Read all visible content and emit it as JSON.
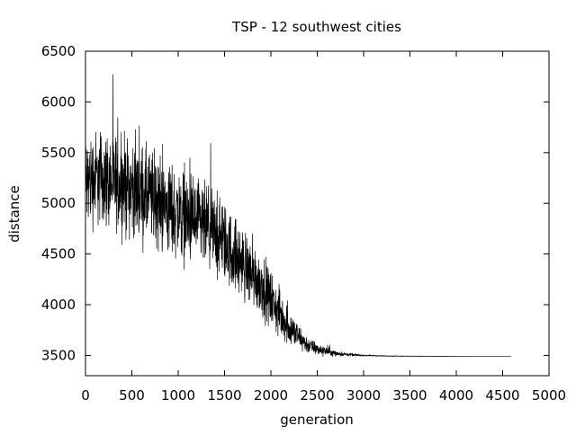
{
  "chart_data": {
    "type": "line",
    "title": "TSP - 12 southwest cities",
    "xlabel": "generation",
    "ylabel": "distance",
    "xlim": [
      0,
      5000
    ],
    "ylim": [
      3300,
      6500
    ],
    "xticks": [
      0,
      500,
      1000,
      1500,
      2000,
      2500,
      3000,
      3500,
      4000,
      4500,
      5000
    ],
    "yticks": [
      3500,
      4000,
      4500,
      5000,
      5500,
      6000,
      6500
    ],
    "xtick_labels": [
      "0",
      "500",
      "1000",
      "1500",
      "2000",
      "2500",
      "3000",
      "3500",
      "4000",
      "4500",
      "5000"
    ],
    "ytick_labels": [
      "3500",
      "4000",
      "4500",
      "5000",
      "5500",
      "6000",
      "6500"
    ],
    "grid": false,
    "legend": "none",
    "line_color": "#000000",
    "series": [
      {
        "x": [
          0,
          100,
          200,
          300,
          400,
          500,
          600,
          700,
          800,
          900,
          1000,
          1100,
          1200,
          1300,
          1400,
          1500,
          1600,
          1700,
          1800,
          1900,
          2000,
          2100,
          2200,
          2300,
          2400,
          2500,
          2600,
          2700,
          2800,
          2900,
          3000,
          3200,
          3400,
          3600,
          3800,
          4000,
          4200,
          4400,
          4590
        ],
        "y": [
          5200,
          5250,
          5250,
          5200,
          5200,
          5150,
          5100,
          5050,
          5000,
          4950,
          4900,
          4850,
          4800,
          4750,
          4700,
          4600,
          4500,
          4400,
          4300,
          4200,
          4050,
          3900,
          3780,
          3680,
          3600,
          3560,
          3540,
          3520,
          3510,
          3505,
          3500,
          3495,
          3493,
          3492,
          3491,
          3490,
          3490,
          3490,
          3490
        ],
        "spread": [
          650,
          650,
          650,
          650,
          650,
          650,
          650,
          650,
          650,
          640,
          620,
          610,
          600,
          590,
          570,
          540,
          510,
          480,
          450,
          420,
          380,
          320,
          250,
          170,
          110,
          80,
          60,
          40,
          25,
          15,
          10,
          6,
          4,
          3,
          2,
          1,
          0,
          0,
          0
        ]
      }
    ]
  }
}
